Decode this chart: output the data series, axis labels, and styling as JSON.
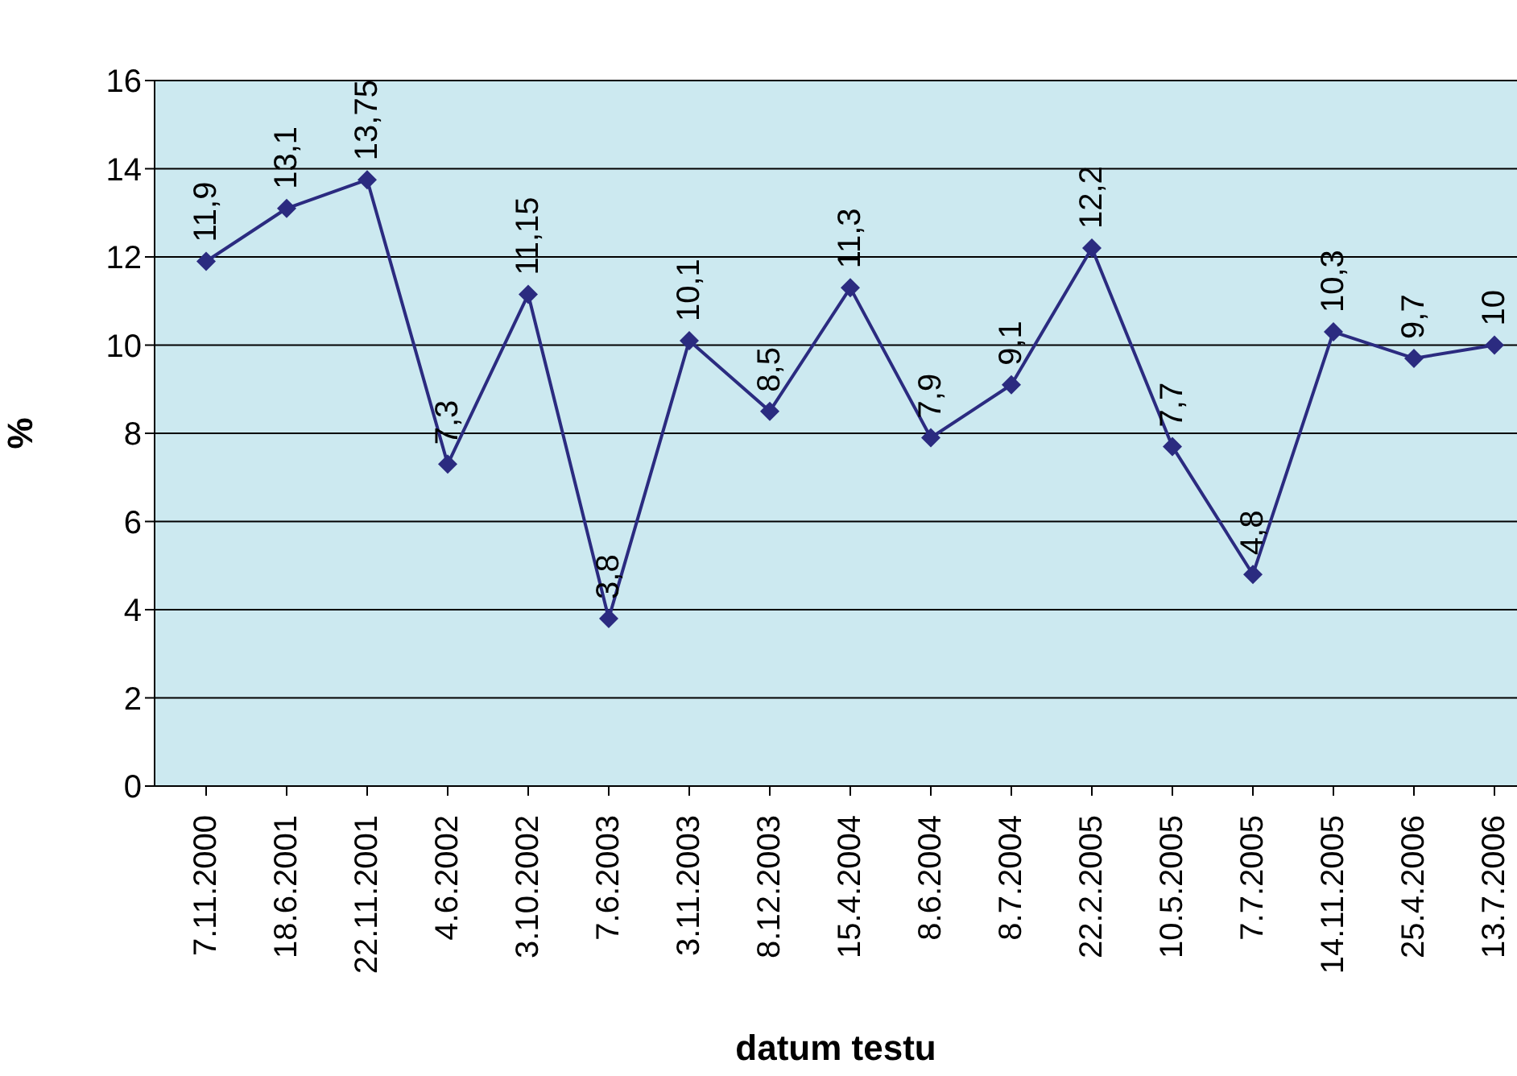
{
  "chart_data": {
    "type": "line",
    "xlabel": "datum testu",
    "ylabel": "%",
    "categories": [
      "7.11.2000",
      "18.6.2001",
      "22.11.2001",
      "4.6.2002",
      "3.10.2002",
      "7.6.2003",
      "3.11.2003",
      "8.12.2003",
      "15.4.2004",
      "8.6.2004",
      "8.7.2004",
      "22.2.2005",
      "10.5.2005",
      "7.7.2005",
      "14.11.2005",
      "25.4.2006",
      "13.7.2006"
    ],
    "series": [
      {
        "color": "#2b2b80",
        "values": [
          11.9,
          13.1,
          13.75,
          7.3,
          11.15,
          3.8,
          10.1,
          8.5,
          11.3,
          7.9,
          9.1,
          12.2,
          7.7,
          4.8,
          10.3,
          9.7,
          10
        ],
        "value_labels": [
          "11,9",
          "13,1",
          "13,75",
          "7,3",
          "11,15",
          "3,8",
          "10,1",
          "8,5",
          "11,3",
          "7,9",
          "9,1",
          "12,2",
          "7,7",
          "4,8",
          "10,3",
          "9,7",
          "10"
        ]
      }
    ],
    "ylim": [
      0,
      16
    ],
    "yticks": [
      0,
      2,
      4,
      6,
      8,
      10,
      12,
      14,
      16
    ],
    "grid": "y",
    "marker": "diamond",
    "line_style": "solid"
  }
}
